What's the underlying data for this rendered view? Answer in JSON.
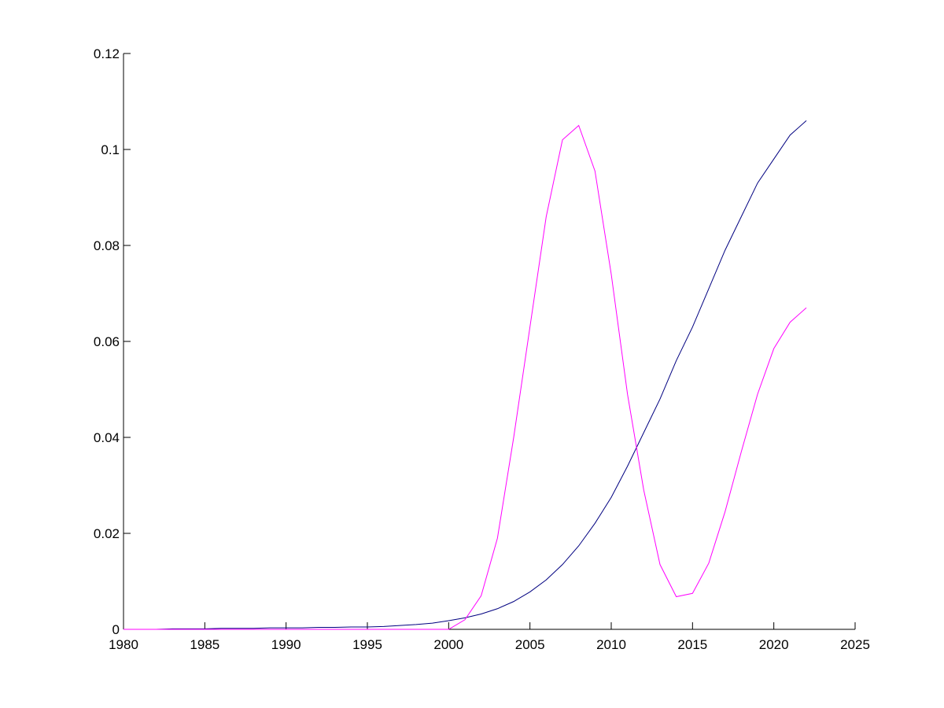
{
  "chart_data": {
    "type": "line",
    "x": [
      1980,
      1981,
      1982,
      1983,
      1984,
      1985,
      1986,
      1987,
      1988,
      1989,
      1990,
      1991,
      1992,
      1993,
      1994,
      1995,
      1996,
      1997,
      1998,
      1999,
      2000,
      2001,
      2002,
      2003,
      2004,
      2005,
      2006,
      2007,
      2008,
      2009,
      2010,
      2011,
      2012,
      2013,
      2014,
      2015,
      2016,
      2017,
      2018,
      2019,
      2020,
      2021,
      2022
    ],
    "series": [
      {
        "color": "#000080",
        "values": [
          0,
          0,
          0,
          0.0001,
          0.0001,
          0.0001,
          0.0002,
          0.0002,
          0.0002,
          0.0003,
          0.0003,
          0.0003,
          0.0004,
          0.0004,
          0.0005,
          0.0005,
          0.0006,
          0.0008,
          0.001,
          0.0013,
          0.0018,
          0.0024,
          0.0032,
          0.0043,
          0.0058,
          0.0078,
          0.0103,
          0.0135,
          0.0174,
          0.0221,
          0.0275,
          0.034,
          0.041,
          0.048,
          0.056,
          0.063,
          0.071,
          0.079,
          0.086,
          0.093,
          0.098,
          0.103,
          0.106
        ]
      },
      {
        "color": "#ff00ff",
        "values": [
          0,
          0,
          0,
          0,
          0,
          0,
          0,
          0,
          0,
          0,
          0,
          0,
          0,
          0,
          0,
          0,
          0,
          0,
          0,
          0,
          0,
          0.002,
          0.007,
          0.019,
          0.04,
          0.063,
          0.086,
          0.102,
          0.105,
          0.0955,
          0.074,
          0.049,
          0.029,
          0.0135,
          0.0068,
          0.0075,
          0.0138,
          0.0245,
          0.037,
          0.049,
          0.0585,
          0.064,
          0.067
        ]
      }
    ],
    "xlim": [
      1980,
      2025
    ],
    "xticks": [
      1980,
      1985,
      1990,
      1995,
      2000,
      2005,
      2010,
      2015,
      2020,
      2025
    ],
    "ylim": [
      0,
      0.12
    ],
    "yticks": [
      0,
      0.02,
      0.04,
      0.06,
      0.08,
      0.1,
      0.12
    ]
  }
}
